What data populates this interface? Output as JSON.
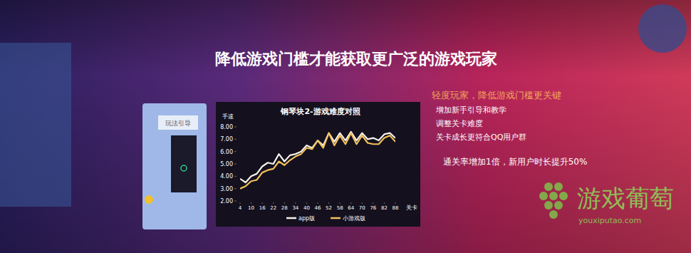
{
  "slide": {
    "title": "降低游戏门槛才能获取更广泛的游戏玩家",
    "phone_text": "玩法引导",
    "headline": "轻度玩家，降低游戏门槛更关键",
    "bullets": [
      "增加新手引导和教学",
      "调整关卡难度",
      "关卡成长更符合QQ用户群"
    ],
    "result": "通关率增加1倍，新用户时长提升50%",
    "watermark": "游戏葡萄",
    "watermark_url": "youxiputao.com"
  },
  "chart_data": {
    "type": "line",
    "title": "钢琴块2-游戏难度对照",
    "y_label": "手速",
    "x_label": "关卡",
    "x": [
      4,
      7,
      10,
      13,
      16,
      19,
      22,
      25,
      28,
      31,
      34,
      37,
      40,
      43,
      46,
      49,
      52,
      55,
      58,
      61,
      64,
      67,
      70,
      73,
      76,
      79,
      82,
      85,
      88
    ],
    "xlim": [
      4,
      88
    ],
    "xticks": [
      4,
      10,
      16,
      22,
      28,
      34,
      40,
      46,
      52,
      58,
      64,
      70,
      76,
      82,
      88
    ],
    "ylim": [
      2,
      8
    ],
    "yticks": [
      {
        "value": 2,
        "label": "2.00"
      },
      {
        "value": 3,
        "label": "3.00"
      },
      {
        "value": 4,
        "label": "4.00"
      },
      {
        "value": 5,
        "label": "5.00"
      },
      {
        "value": 6,
        "label": "6.00"
      },
      {
        "value": 7,
        "label": "7.00"
      },
      {
        "value": 8,
        "label": "8.00"
      }
    ],
    "grid": false,
    "legend": "bottom",
    "series": [
      {
        "name": "app版",
        "color": "#f4f0ea",
        "values": [
          3.8,
          3.5,
          4.0,
          4.2,
          4.8,
          5.1,
          5.0,
          5.8,
          5.2,
          5.7,
          5.8,
          6.0,
          6.5,
          6.3,
          6.9,
          6.5,
          7.5,
          6.8,
          7.5,
          6.9,
          7.6,
          6.9,
          7.5,
          7.0,
          7.1,
          6.9,
          7.4,
          7.5,
          7.1
        ]
      },
      {
        "name": "小游戏版",
        "color": "#f2c25a",
        "values": [
          3.0,
          3.2,
          3.6,
          3.7,
          4.3,
          4.5,
          4.6,
          5.2,
          4.9,
          5.3,
          5.6,
          5.8,
          6.3,
          6.2,
          6.9,
          6.3,
          7.5,
          6.5,
          7.3,
          6.6,
          7.5,
          6.6,
          7.3,
          6.7,
          6.6,
          6.6,
          7.1,
          7.3,
          6.8
        ]
      }
    ]
  }
}
